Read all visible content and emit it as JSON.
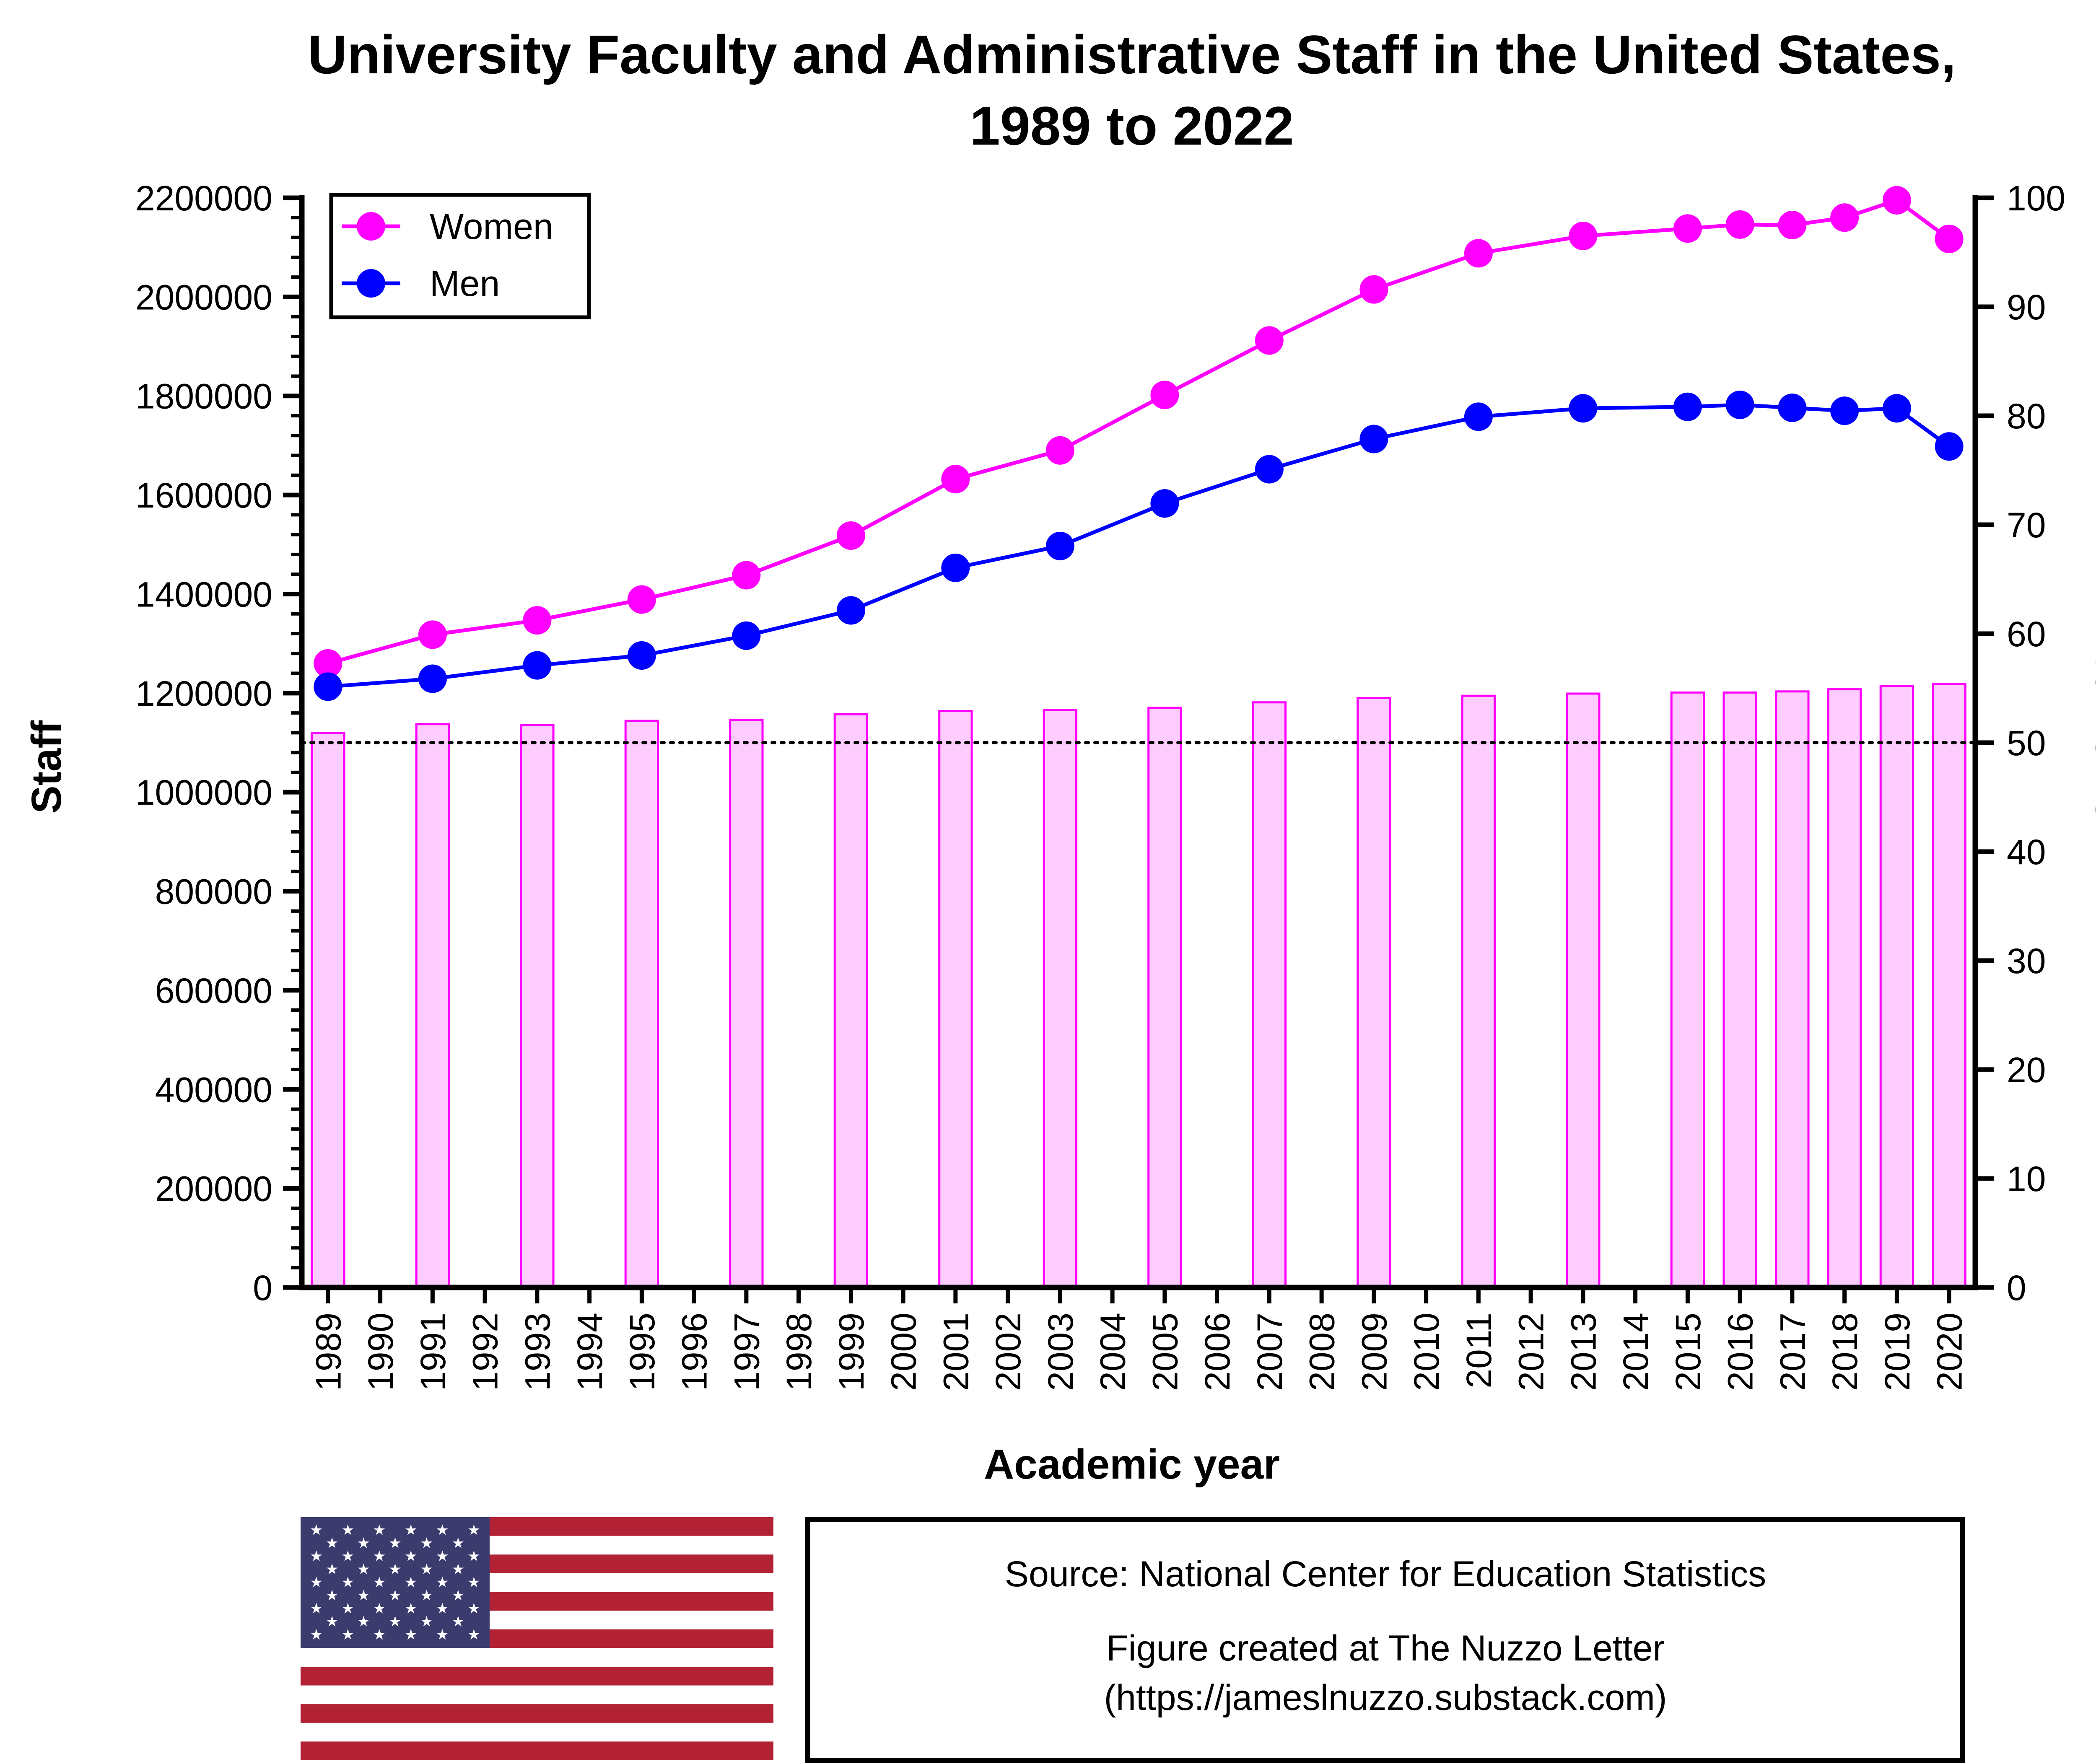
{
  "chart_data": {
    "type": "bar+line",
    "title_line1": "University Faculty and Administrative Staff in the United States,",
    "title_line2": "1989 to 2022",
    "xlabel": "Academic year",
    "ylabel_left": "Staff",
    "ylabel_right": "% women",
    "ylim_left": [
      0,
      2200000
    ],
    "ylim_right": [
      0,
      100
    ],
    "left_ticks": [
      "0",
      "200000",
      "400000",
      "600000",
      "800000",
      "1000000",
      "1200000",
      "1400000",
      "1600000",
      "1800000",
      "2000000",
      "2200000"
    ],
    "right_ticks": [
      "0",
      "10",
      "20",
      "30",
      "40",
      "50",
      "60",
      "70",
      "80",
      "90",
      "100"
    ],
    "categories": [
      "1989",
      "1990",
      "1991",
      "1992",
      "1993",
      "1994",
      "1995",
      "1996",
      "1997",
      "1998",
      "1999",
      "2000",
      "2001",
      "2002",
      "2003",
      "2004",
      "2005",
      "2006",
      "2007",
      "2008",
      "2009",
      "2010",
      "2011",
      "2012",
      "2013",
      "2014",
      "2015",
      "2016",
      "2017",
      "2018",
      "2019",
      "2020"
    ],
    "series": [
      {
        "name": "Women",
        "type": "line",
        "axis": "left",
        "color": "#ff00ff",
        "x": [
          "1989",
          "1991",
          "1993",
          "1995",
          "1997",
          "1999",
          "2001",
          "2003",
          "2005",
          "2007",
          "2009",
          "2011",
          "2013",
          "2015",
          "2016",
          "2017",
          "2018",
          "2019",
          "2020"
        ],
        "values": [
          1260000,
          1318000,
          1347000,
          1389000,
          1438000,
          1518000,
          1632000,
          1690000,
          1802000,
          1912000,
          2015000,
          2088000,
          2123000,
          2138000,
          2146000,
          2145000,
          2160000,
          2195000,
          2117000
        ]
      },
      {
        "name": "Men",
        "type": "line",
        "axis": "left",
        "color": "#0000ff",
        "x": [
          "1989",
          "1991",
          "1993",
          "1995",
          "1997",
          "1999",
          "2001",
          "2003",
          "2005",
          "2007",
          "2009",
          "2011",
          "2013",
          "2015",
          "2016",
          "2017",
          "2018",
          "2019",
          "2020"
        ],
        "values": [
          1213000,
          1229000,
          1256000,
          1276000,
          1316000,
          1367000,
          1453000,
          1497000,
          1583000,
          1652000,
          1713000,
          1758000,
          1775000,
          1778000,
          1782000,
          1776000,
          1770000,
          1775000,
          1698000
        ]
      },
      {
        "name": "% women",
        "type": "bar",
        "axis": "right",
        "color": "#ffccff",
        "edge": "#ff00ff",
        "x": [
          "1989",
          "1991",
          "1993",
          "1995",
          "1997",
          "1999",
          "2001",
          "2003",
          "2005",
          "2007",
          "2009",
          "2011",
          "2013",
          "2015",
          "2016",
          "2017",
          "2018",
          "2019",
          "2020"
        ],
        "values": [
          50.9,
          51.7,
          51.6,
          52.0,
          52.1,
          52.6,
          52.9,
          53.0,
          53.2,
          53.7,
          54.1,
          54.3,
          54.5,
          54.6,
          54.6,
          54.7,
          54.9,
          55.2,
          55.4
        ]
      }
    ],
    "reference_line": {
      "axis": "right",
      "value": 50,
      "style": "dotted"
    },
    "legend": {
      "position": "top-left",
      "entries": [
        "Women",
        "Men"
      ]
    },
    "colors": {
      "women": "#ff00ff",
      "men": "#0000ff",
      "bar_fill": "#ffccff"
    }
  },
  "footer": {
    "source_line": "Source: National Center for Education Statistics",
    "credit_line1": "Figure created at The Nuzzo Letter",
    "credit_line2": "(https://jameslnuzzo.substack.com)",
    "flag_icon": "us-flag-icon",
    "flag_colors": {
      "red": "#b22234",
      "blue": "#3c3b6e",
      "white": "#ffffff"
    }
  }
}
